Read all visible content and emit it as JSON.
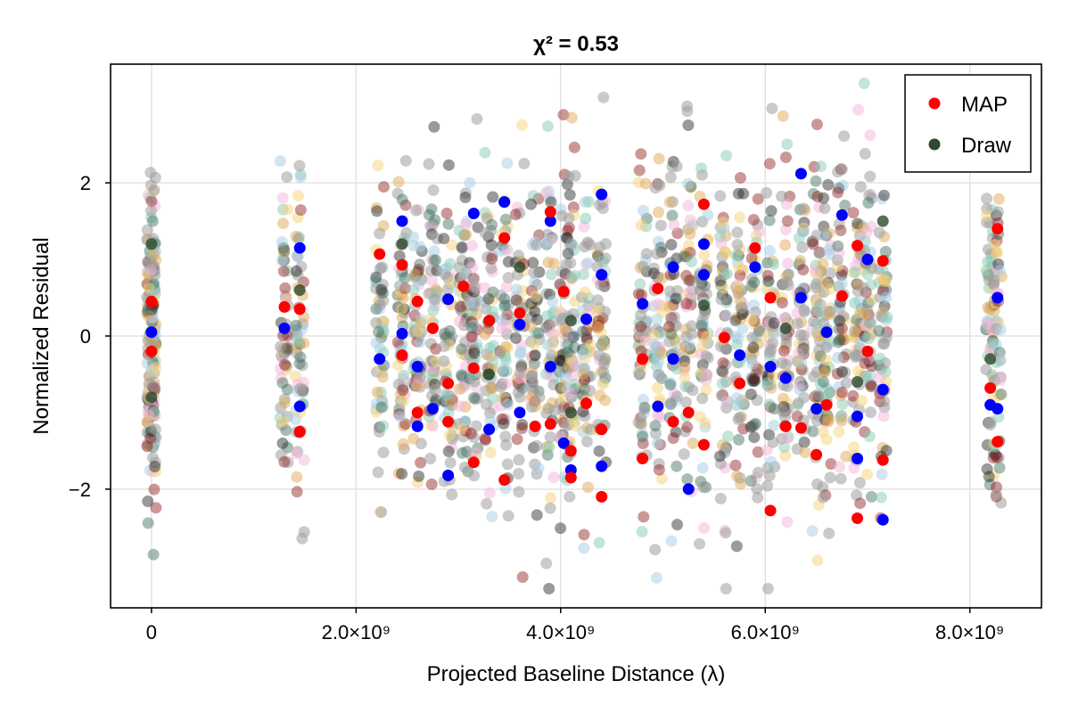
{
  "chart_data": {
    "type": "scatter",
    "title": "χ² = 0.53",
    "xlabel": "Projected Baseline Distance (λ)",
    "ylabel": "Normalized Residual",
    "xlim": [
      -400000000,
      8700000000
    ],
    "ylim": [
      -3.55,
      3.55
    ],
    "x_ticks": [
      {
        "value": 0,
        "label": "0"
      },
      {
        "value": 2000000000,
        "label": "2.0×10⁹"
      },
      {
        "value": 4000000000,
        "label": "4.0×10⁹"
      },
      {
        "value": 6000000000,
        "label": "6.0×10⁹"
      },
      {
        "value": 8000000000,
        "label": "8.0×10⁹"
      }
    ],
    "y_ticks": [
      {
        "value": -2,
        "label": "−2"
      },
      {
        "value": 0,
        "label": "0"
      },
      {
        "value": 2,
        "label": "2"
      }
    ],
    "grid": true,
    "legend_position": "top-right",
    "baseline_clusters_e9": [
      0.0,
      1.3,
      1.45,
      2.23,
      2.45,
      2.6,
      2.75,
      2.9,
      3.05,
      3.15,
      3.3,
      3.45,
      3.6,
      3.75,
      3.9,
      4.03,
      4.1,
      4.25,
      4.4,
      4.8,
      4.95,
      5.1,
      5.25,
      5.4,
      5.6,
      5.75,
      5.9,
      6.05,
      6.2,
      6.35,
      6.5,
      6.6,
      6.75,
      6.9,
      7.0,
      7.15,
      8.2,
      8.27
    ],
    "series": [
      {
        "name": "MAP",
        "color": "#ff0000",
        "values": [
          [
            0.0,
            0.45
          ],
          [
            0.0,
            -0.2
          ],
          [
            1.3,
            0.38
          ],
          [
            1.45,
            0.35
          ],
          [
            1.45,
            -1.25
          ],
          [
            2.23,
            1.07
          ],
          [
            2.45,
            0.93
          ],
          [
            2.45,
            -0.25
          ],
          [
            2.6,
            0.45
          ],
          [
            2.6,
            -1.0
          ],
          [
            2.75,
            0.1
          ],
          [
            2.9,
            -0.62
          ],
          [
            2.9,
            -1.12
          ],
          [
            3.05,
            0.65
          ],
          [
            3.15,
            -1.65
          ],
          [
            3.15,
            -0.42
          ],
          [
            3.3,
            0.2
          ],
          [
            3.45,
            -1.88
          ],
          [
            3.45,
            1.28
          ],
          [
            3.6,
            0.3
          ],
          [
            3.75,
            -1.18
          ],
          [
            3.9,
            1.62
          ],
          [
            3.9,
            -1.15
          ],
          [
            4.03,
            0.58
          ],
          [
            4.1,
            -1.5
          ],
          [
            4.1,
            -1.85
          ],
          [
            4.25,
            -0.88
          ],
          [
            4.4,
            -2.1
          ],
          [
            4.4,
            -1.22
          ],
          [
            4.8,
            -0.3
          ],
          [
            4.8,
            -1.6
          ],
          [
            4.95,
            0.62
          ],
          [
            5.1,
            -1.12
          ],
          [
            5.25,
            -1.0
          ],
          [
            5.4,
            -1.42
          ],
          [
            5.4,
            1.72
          ],
          [
            5.6,
            -0.02
          ],
          [
            5.75,
            -0.62
          ],
          [
            5.9,
            1.15
          ],
          [
            6.05,
            -2.28
          ],
          [
            6.05,
            0.5
          ],
          [
            6.2,
            -1.18
          ],
          [
            6.35,
            -1.2
          ],
          [
            6.5,
            -1.55
          ],
          [
            6.6,
            -0.9
          ],
          [
            6.75,
            0.52
          ],
          [
            6.9,
            -2.38
          ],
          [
            6.9,
            1.18
          ],
          [
            7.0,
            -0.2
          ],
          [
            7.15,
            -1.62
          ],
          [
            7.15,
            0.98
          ],
          [
            8.2,
            -0.68
          ],
          [
            8.27,
            1.4
          ],
          [
            8.27,
            -1.38
          ]
        ]
      },
      {
        "name": "Draw",
        "color": "#2d4a2d",
        "values": [
          [
            0.0,
            1.2
          ],
          [
            0.0,
            -0.8
          ],
          [
            1.45,
            0.6
          ],
          [
            2.45,
            1.2
          ],
          [
            3.3,
            -0.5
          ],
          [
            3.6,
            0.9
          ],
          [
            4.1,
            0.2
          ],
          [
            4.1,
            -1.0
          ],
          [
            5.4,
            0.4
          ],
          [
            6.2,
            0.1
          ],
          [
            6.9,
            -0.6
          ],
          [
            7.15,
            1.5
          ],
          [
            8.2,
            -0.3
          ]
        ]
      }
    ],
    "extra_series": [
      {
        "color": "#0000ff",
        "values": [
          [
            1.3,
            0.1
          ],
          [
            1.45,
            1.15
          ],
          [
            1.45,
            -0.92
          ],
          [
            2.45,
            1.5
          ],
          [
            2.45,
            0.03
          ],
          [
            2.23,
            -0.3
          ],
          [
            2.6,
            -1.18
          ],
          [
            2.6,
            -0.4
          ],
          [
            2.75,
            -0.95
          ],
          [
            2.9,
            -1.82
          ],
          [
            2.9,
            0.48
          ],
          [
            3.15,
            1.6
          ],
          [
            3.3,
            -1.22
          ],
          [
            3.45,
            1.75
          ],
          [
            3.6,
            -1.0
          ],
          [
            3.6,
            0.15
          ],
          [
            3.9,
            -0.4
          ],
          [
            3.9,
            1.5
          ],
          [
            4.03,
            -1.4
          ],
          [
            4.1,
            -1.75
          ],
          [
            4.25,
            0.22
          ],
          [
            4.4,
            1.85
          ],
          [
            4.4,
            0.8
          ],
          [
            4.4,
            -1.7
          ],
          [
            4.8,
            0.42
          ],
          [
            4.95,
            -0.92
          ],
          [
            5.1,
            0.9
          ],
          [
            5.1,
            -0.3
          ],
          [
            5.25,
            -2.0
          ],
          [
            5.4,
            1.2
          ],
          [
            5.4,
            0.8
          ],
          [
            5.75,
            -0.25
          ],
          [
            5.9,
            0.9
          ],
          [
            6.05,
            -0.4
          ],
          [
            6.2,
            -0.55
          ],
          [
            6.35,
            2.12
          ],
          [
            6.35,
            0.5
          ],
          [
            6.5,
            -0.95
          ],
          [
            6.6,
            0.05
          ],
          [
            6.75,
            1.58
          ],
          [
            6.9,
            -1.05
          ],
          [
            6.9,
            -1.6
          ],
          [
            7.0,
            1.0
          ],
          [
            7.15,
            -0.7
          ],
          [
            7.15,
            -2.4
          ],
          [
            8.27,
            0.5
          ],
          [
            8.27,
            -0.95
          ],
          [
            8.2,
            -0.9
          ],
          [
            0.0,
            0.05
          ]
        ]
      }
    ]
  },
  "legend": {
    "items": [
      {
        "label": "MAP",
        "color": "#ff0000"
      },
      {
        "label": "Draw",
        "color": "#2d4a2d"
      }
    ]
  }
}
